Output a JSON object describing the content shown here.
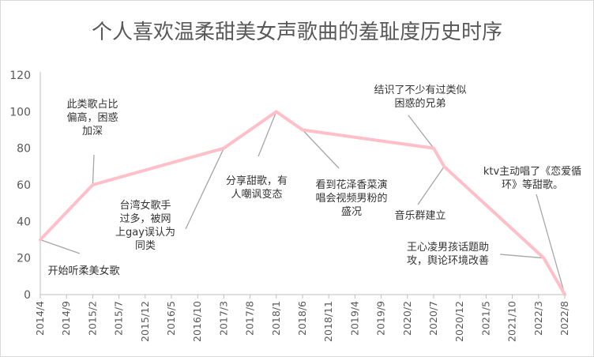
{
  "chart_data": {
    "type": "line",
    "title": "个人喜欢温柔甜美女声歌曲的羞耻度历史时序",
    "xlabel": "",
    "ylabel": "",
    "ylim": [
      0,
      120
    ],
    "yticks": [
      0,
      20,
      40,
      60,
      80,
      100,
      120
    ],
    "grid": false,
    "legend": "none",
    "line_color": "#ffbfc9",
    "x_ticks": [
      "2014/4",
      "2014/9",
      "2015/2",
      "2015/7",
      "2015/12",
      "2016/5",
      "2016/10",
      "2017/3",
      "2017/8",
      "2018/1",
      "2018/6",
      "2018/11",
      "2019/4",
      "2019/9",
      "2020/2",
      "2020/7",
      "2020/12",
      "2021/5",
      "2021/10",
      "2022/3",
      "2022/8"
    ],
    "points": [
      {
        "x": "2014/4",
        "y": 30
      },
      {
        "x": "2015/2",
        "y": 60
      },
      {
        "x": "2017/3",
        "y": 80
      },
      {
        "x": "2018/1",
        "y": 100
      },
      {
        "x": "2018/6",
        "y": 90
      },
      {
        "x": "2020/7",
        "y": 80
      },
      {
        "x": "2020/9",
        "y": 70
      },
      {
        "x": "2022/4",
        "y": 20
      },
      {
        "x": "2022/8",
        "y": 0
      }
    ],
    "annotations": [
      {
        "lines": [
          "开始听柔美女歌"
        ],
        "x": "2014/4",
        "y": 30
      },
      {
        "lines": [
          "此类歌占比",
          "偏高，困惑",
          "加深"
        ],
        "x": "2015/2",
        "y": 60
      },
      {
        "lines": [
          "台湾女歌手",
          "过多，被网",
          "上gay误认为",
          "同类"
        ],
        "x": "2017/3",
        "y": 80
      },
      {
        "lines": [
          "分享甜歌，有",
          "人嘲讽变态"
        ],
        "x": "2018/1",
        "y": 100
      },
      {
        "lines": [
          "看到花泽香菜演",
          "唱会视频男粉的",
          "盛况"
        ],
        "x": "2018/6",
        "y": 90
      },
      {
        "lines": [
          "结识了不少有过类似",
          "困惑的兄弟"
        ],
        "x": "2020/7",
        "y": 80
      },
      {
        "lines": [
          "音乐群建立"
        ],
        "x": "2020/9",
        "y": 70
      },
      {
        "lines": [
          "王心凌男孩话题助",
          "攻，舆论环境改善"
        ],
        "x": "2022/4",
        "y": 20
      },
      {
        "lines": [
          "ktv主动唱了《恋爱循",
          "环》等甜歌。"
        ],
        "x": "2022/8",
        "y": 0
      }
    ]
  }
}
